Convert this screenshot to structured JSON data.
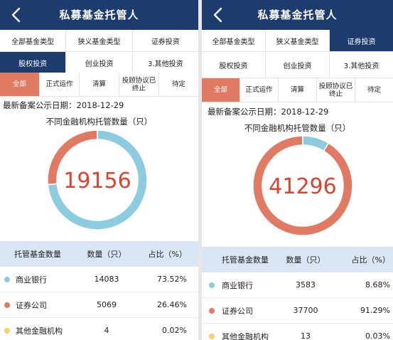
{
  "app": {
    "title": "私募基金托管人"
  },
  "tabs_row1": [
    "全部基金类型",
    "狭义基金类型",
    "证券投资"
  ],
  "tabs_row2": [
    "股权投资",
    "创业投资",
    "3.其他投资"
  ],
  "status_tabs": [
    "全部",
    "正式运作",
    "清算",
    "投顾协议已终止",
    "待定"
  ],
  "date_text": "最新备案公示日期：2018-12-29",
  "chart_title": "不同金融机构托管数量（只）",
  "table_headers": [
    "托管基金数量",
    "数量（只）",
    "占比（%）"
  ],
  "colors": {
    "header": "#1d3c6e",
    "accent": "#e07a63",
    "bank": "#8ccbe0",
    "securities": "#e07a63",
    "other": "#f6d36f",
    "table_head": "#d9e7f5"
  },
  "screens": [
    {
      "active_type_tab": "股权投资",
      "active_status_tab": "全部",
      "total": "19156",
      "chart_data": {
        "type": "pie",
        "categories": [
          "商业银行",
          "证券公司",
          "其他金融机构"
        ],
        "values": [
          73.52,
          26.46,
          0.02
        ]
      },
      "rows": [
        {
          "name": "商业银行",
          "count": "14083",
          "pct": "73.52%"
        },
        {
          "name": "证券公司",
          "count": "5069",
          "pct": "26.46%"
        },
        {
          "name": "其他金融机构",
          "count": "4",
          "pct": "0.02%"
        }
      ]
    },
    {
      "active_type_tab": "证券投资",
      "active_status_tab": "全部",
      "total": "41296",
      "chart_data": {
        "type": "pie",
        "categories": [
          "商业银行",
          "证券公司",
          "其他金融机构"
        ],
        "values": [
          8.68,
          91.29,
          0.03
        ]
      },
      "rows": [
        {
          "name": "商业银行",
          "count": "3583",
          "pct": "8.68%"
        },
        {
          "name": "证券公司",
          "count": "37700",
          "pct": "91.29%"
        },
        {
          "name": "其他金融机构",
          "count": "13",
          "pct": "0.03%"
        }
      ]
    }
  ]
}
